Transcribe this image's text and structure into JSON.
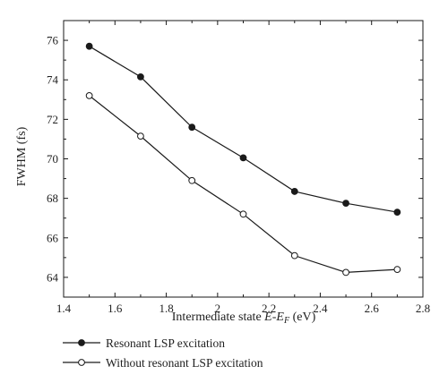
{
  "chart_data": {
    "type": "line",
    "xlabel_prefix": "Intermediate state ",
    "xlabel_math_a": "E",
    "xlabel_dash": "-",
    "xlabel_math_b": "E",
    "xlabel_sub": "F",
    "xlabel_suffix": " (eV)",
    "ylabel": "FWHM (fs)",
    "xlim": [
      1.4,
      2.8
    ],
    "ylim": [
      63,
      77
    ],
    "xticks": [
      "1.4",
      "1.6",
      "1.8",
      "2",
      "2.2",
      "2.4",
      "2.6",
      "2.8"
    ],
    "yticks": [
      "64",
      "66",
      "68",
      "70",
      "72",
      "74",
      "76"
    ],
    "x": [
      1.5,
      1.7,
      1.9,
      2.1,
      2.3,
      2.5,
      2.7
    ],
    "series": [
      {
        "name": "Resonant LSP excitation",
        "marker": "filled-circle",
        "values": [
          75.7,
          74.15,
          71.6,
          70.05,
          68.35,
          67.75,
          67.3
        ]
      },
      {
        "name": "Without resonant LSP excitation",
        "marker": "open-circle",
        "values": [
          73.2,
          71.15,
          68.9,
          67.2,
          65.1,
          64.25,
          64.4
        ]
      }
    ],
    "grid": false,
    "legend_position": "below-plot"
  },
  "colors": {
    "line": "#1a1a1a",
    "marker_fill": "#1a1a1a",
    "open_marker_fill": "#ffffff"
  }
}
